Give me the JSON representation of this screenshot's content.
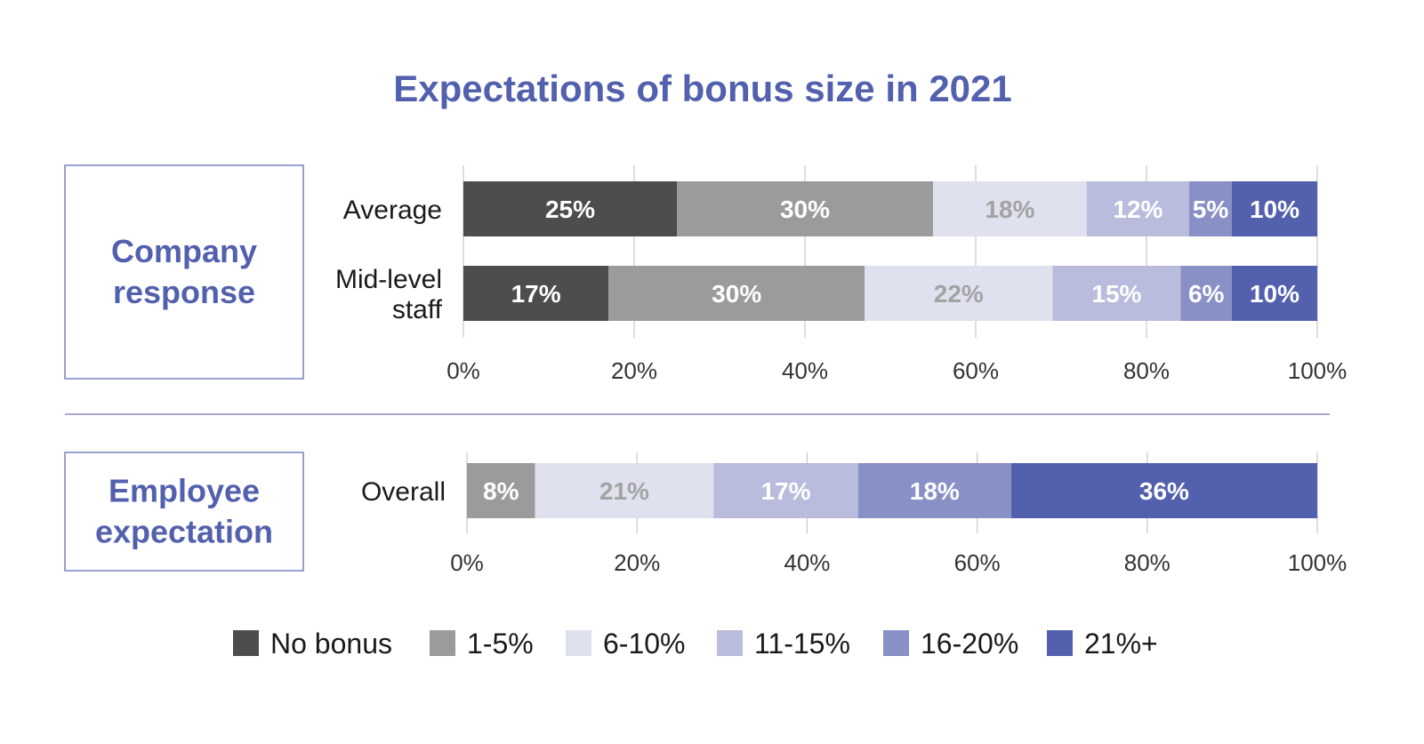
{
  "chart_data": {
    "type": "bar",
    "orientation": "horizontal",
    "stacked": true,
    "title": "Expectations of bonus size in 2021",
    "series": [
      {
        "name": "No bonus",
        "color": "#4d4d4d"
      },
      {
        "name": "1-5%",
        "color": "#9b9b9b"
      },
      {
        "name": "6-10%",
        "color": "#dfe1ef"
      },
      {
        "name": "11-15%",
        "color": "#b9bcdc"
      },
      {
        "name": "16-20%",
        "color": "#8990c6"
      },
      {
        "name": "21%+",
        "color": "#5260ad"
      }
    ],
    "xlim": [
      0,
      100
    ],
    "x_ticks": [
      "0%",
      "20%",
      "40%",
      "60%",
      "80%",
      "100%"
    ],
    "grid": "vertical",
    "legend": "bottom",
    "panels": [
      {
        "label": "Company response",
        "categories": [
          {
            "name": "Average",
            "name_lines": [
              "Average"
            ],
            "values": [
              25,
              30,
              18,
              12,
              5,
              10
            ],
            "labels": [
              "25%",
              "30%",
              "18%",
              "12%",
              "5%",
              "10%"
            ]
          },
          {
            "name": "Mid-level staff",
            "name_lines": [
              "Mid-level",
              "staff"
            ],
            "values": [
              17,
              30,
              22,
              15,
              6,
              10
            ],
            "labels": [
              "17%",
              "30%",
              "22%",
              "15%",
              "6%",
              "10%"
            ]
          }
        ]
      },
      {
        "label": "Employee expectation",
        "categories": [
          {
            "name": "Overall",
            "name_lines": [
              "Overall"
            ],
            "values": [
              0,
              8,
              21,
              17,
              18,
              36
            ],
            "labels": [
              "",
              "8%",
              "21%",
              "17%",
              "18%",
              "36%"
            ]
          }
        ]
      }
    ]
  },
  "colors": {
    "title": "#5260ad",
    "panel_label": "#5260ad",
    "panel_border": "#7a82bd",
    "separator": "#8a90c0",
    "grid": "#c8c8c8",
    "label_light": "#ffffff",
    "label_dark": "#a3a3a3"
  }
}
